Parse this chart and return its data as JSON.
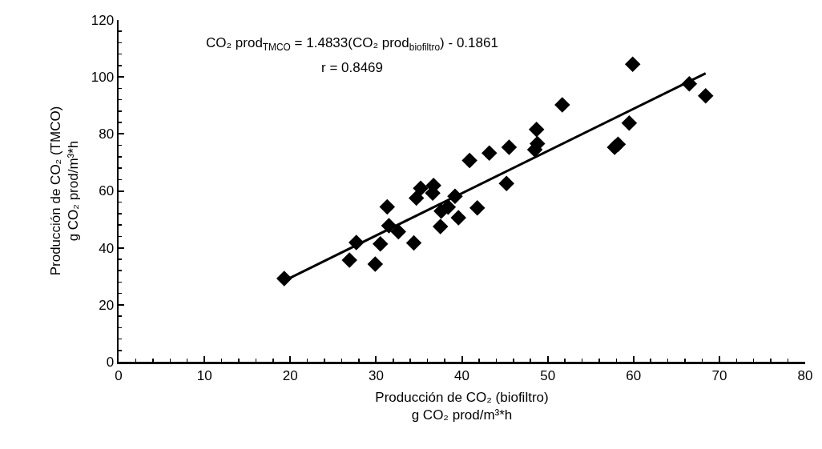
{
  "chart_data": {
    "type": "scatter",
    "xlabel": "Producción de CO₂ (biofiltro)\ng CO₂ prod/m³*h",
    "ylabel": "Producción de CO₂ (TMCO)\ng CO₂ prod/m³*h",
    "annotations": [
      "CO₂ prod$_{TMCO}$ = 1.4833(CO₂ prod$_{biofiltro}$) - 0.1861",
      "r = 0.8469"
    ],
    "xlim": [
      0,
      80
    ],
    "xticks": [
      0,
      10,
      20,
      30,
      40,
      50,
      60,
      70,
      80
    ],
    "ylim": [
      0,
      120
    ],
    "yticks": [
      0,
      20,
      40,
      60,
      80,
      100,
      120
    ],
    "grid": false,
    "marker": "diamond",
    "series": [
      {
        "color": "#000000",
        "x": [
          19.3,
          26.9,
          27.7,
          29.9,
          30.5,
          31.3,
          31.5,
          32.6,
          34.4,
          34.7,
          35.2,
          36.6,
          36.7,
          37.5,
          37.6,
          38.4,
          39.2,
          39.6,
          40.9,
          41.8,
          43.2,
          45.2,
          45.5,
          48.5,
          48.7,
          48.8,
          51.7,
          57.8,
          58.2,
          59.5,
          59.9,
          66.5,
          68.4
        ],
        "values": [
          29.2,
          35.7,
          41.9,
          34.3,
          41.4,
          54.4,
          47.8,
          45.7,
          41.7,
          57.5,
          60.9,
          59.2,
          61.9,
          47.5,
          52.9,
          54.3,
          58.1,
          50.6,
          70.7,
          54.0,
          73.3,
          62.6,
          75.3,
          74.5,
          81.6,
          76.6,
          90.2,
          75.3,
          76.4,
          83.8,
          104.5,
          97.6,
          93.4
        ]
      },
      {
        "type": "line",
        "color": "#000000",
        "marker": "none",
        "line_style": "solid",
        "x": [
          19.2,
          68.4
        ],
        "values": [
          28.3,
          101.3
        ]
      }
    ]
  }
}
